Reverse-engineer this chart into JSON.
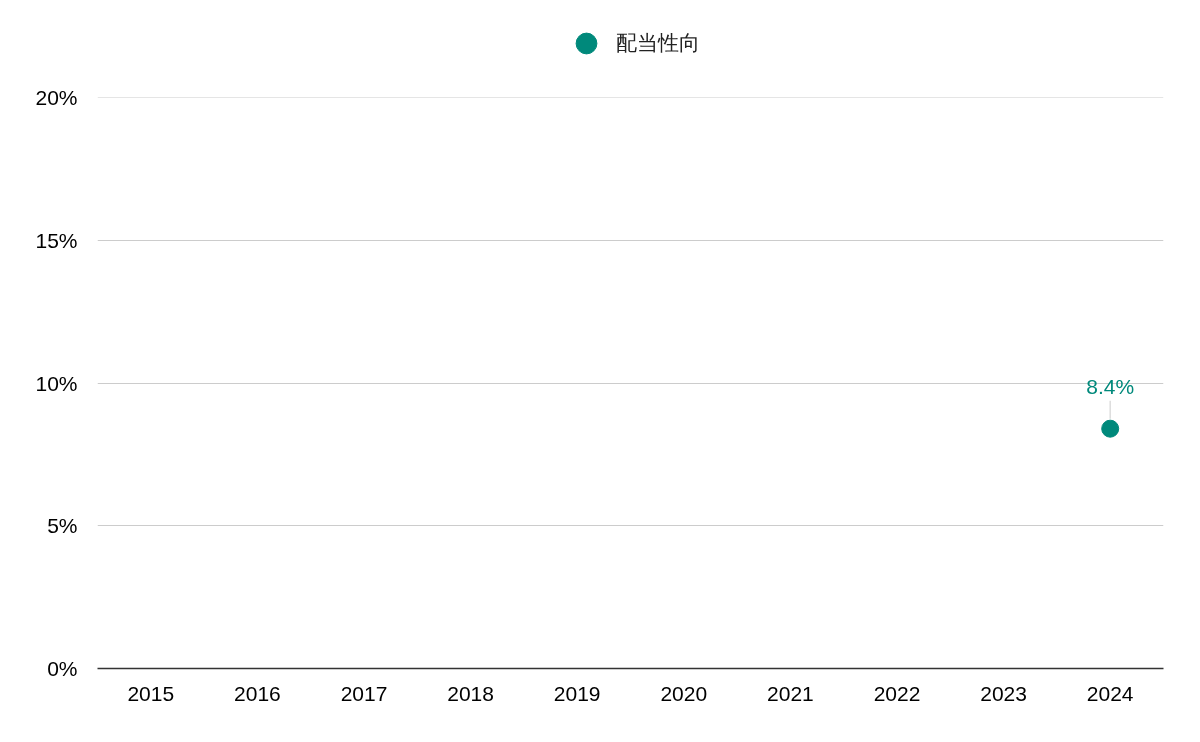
{
  "chart_data": {
    "type": "scatter",
    "categories": [
      "2015",
      "2016",
      "2017",
      "2018",
      "2019",
      "2020",
      "2021",
      "2022",
      "2023",
      "2024"
    ],
    "series": [
      {
        "name": "配当性向",
        "color": "#00897b",
        "values": [
          null,
          null,
          null,
          null,
          null,
          null,
          null,
          null,
          null,
          8.4
        ],
        "value_labels": [
          null,
          null,
          null,
          null,
          null,
          null,
          null,
          null,
          null,
          "8.4%"
        ]
      }
    ],
    "ylim": [
      0,
      20
    ],
    "yticks": [
      {
        "value": 0,
        "label": "0%"
      },
      {
        "value": 5,
        "label": "5%"
      },
      {
        "value": 10,
        "label": "10%"
      },
      {
        "value": 15,
        "label": "15%"
      },
      {
        "value": 20,
        "label": "20%"
      }
    ],
    "grid": "y",
    "legend": "top",
    "marker": "circle"
  }
}
